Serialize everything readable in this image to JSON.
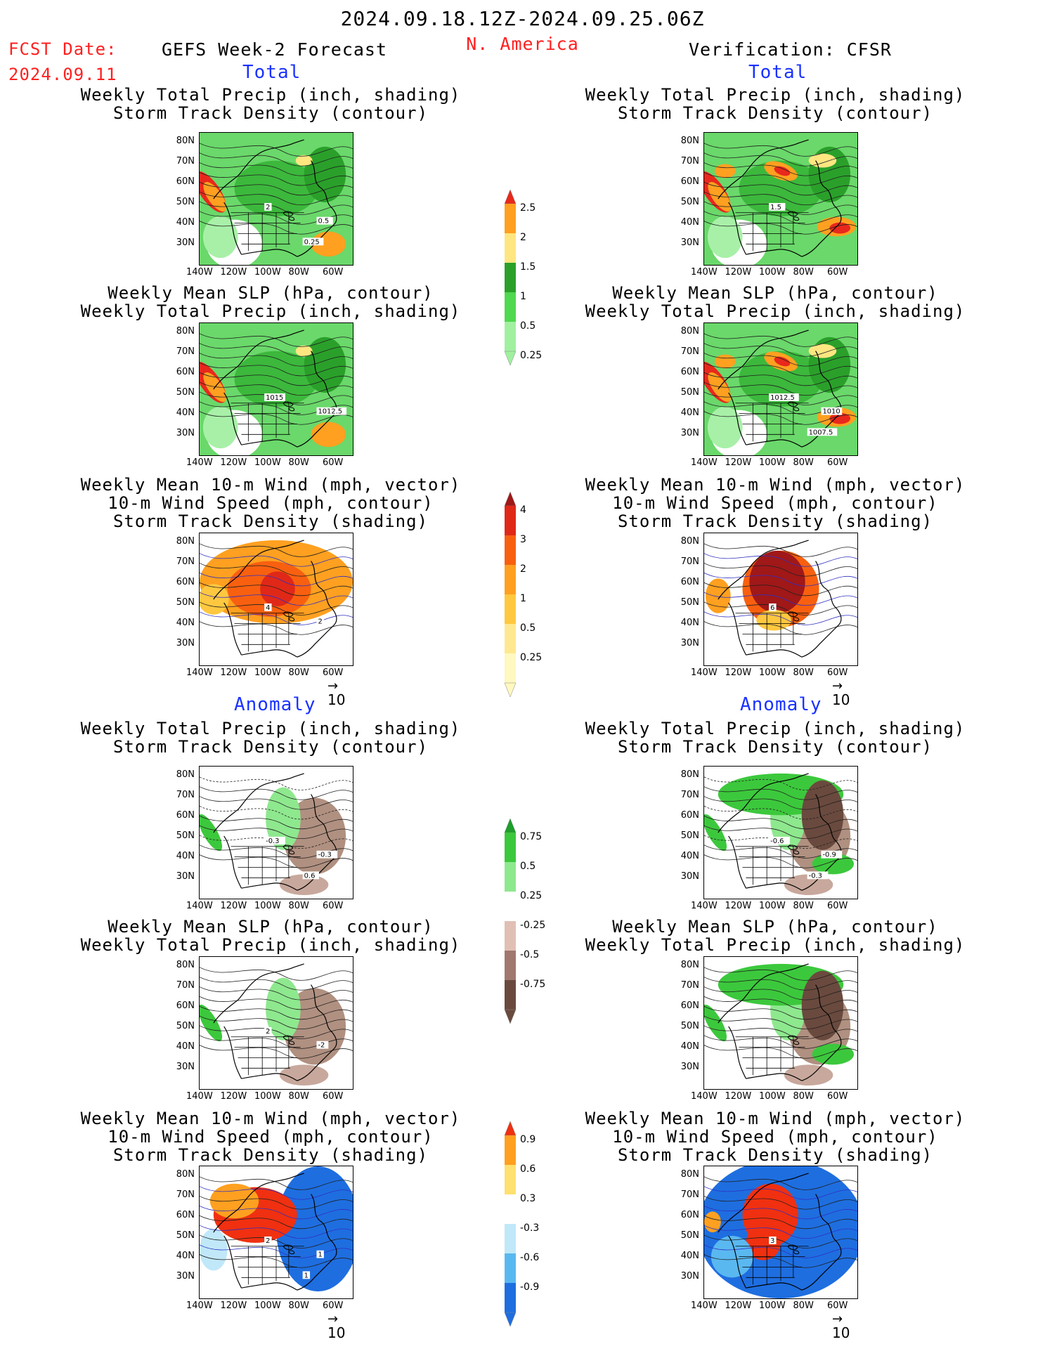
{
  "header": {
    "date_range": "2024.09.18.12Z-2024.09.25.06Z",
    "fcst_label": "FCST Date:",
    "fcst_date": "2024.09.11",
    "forecast_title": "GEFS Week-2 Forecast",
    "region": "N. America",
    "verification": "Verification: CFSR"
  },
  "section_labels": {
    "total": "Total",
    "anomaly": "Anomaly"
  },
  "axes": {
    "lat_labels": [
      "80N",
      "70N",
      "60N",
      "50N",
      "40N",
      "30N"
    ],
    "lon_labels": [
      "140W",
      "120W",
      "100W",
      "80W",
      "60W"
    ],
    "vector_ref": "10"
  },
  "panel_titles": {
    "precip_storm": [
      "Weekly Total Precip (inch, shading)",
      "Storm Track Density (contour)"
    ],
    "slp_precip": [
      "Weekly Mean SLP (hPa, contour)",
      "Weekly Total Precip (inch, shading)"
    ],
    "wind_storm": [
      "Weekly Mean 10-m Wind (mph, vector)",
      "10-m Wind Speed (mph, contour)",
      "Storm Track Density (shading)"
    ]
  },
  "contour_labels": {
    "fcst_precip": [
      "2",
      "0.5",
      "0.25"
    ],
    "cfsr_precip": [
      "1.5"
    ],
    "fcst_slp": [
      "1015",
      "1012.5"
    ],
    "cfsr_slp": [
      "1012.5",
      "1010",
      "1007.5"
    ],
    "fcst_wind": [
      "4",
      "2"
    ],
    "cfsr_wind": [
      "6"
    ],
    "fcst_anom_precip": [
      "-0.3",
      "-0.3",
      "0.6"
    ],
    "cfsr_anom_precip": [
      "-0.6",
      "-0.9",
      "-0.3"
    ],
    "fcst_anom_slp": [
      "2",
      "-2"
    ],
    "fcst_anom_wind": [
      "2",
      "1",
      "1"
    ],
    "cfsr_anom_wind": [
      "3"
    ]
  },
  "colorbars": {
    "precip_total": {
      "labels": [
        "2.5",
        "2",
        "1.5",
        "1",
        "0.5",
        "0.25"
      ],
      "colors": [
        "#e8281c",
        "#ffa020",
        "#ffe680",
        "#2aa02a",
        "#50d850",
        "#a0f0a0"
      ]
    },
    "storm_total": {
      "labels": [
        "4",
        "3",
        "2",
        "1",
        "0.5",
        "0.25"
      ],
      "colors": [
        "#a01818",
        "#e02818",
        "#f86010",
        "#ffa020",
        "#ffc840",
        "#ffe890",
        "#fff8c0"
      ]
    },
    "precip_anom": {
      "labels": [
        "0.75",
        "0.5",
        "0.25",
        "-0.25",
        "-0.5",
        "-0.75"
      ],
      "colors": [
        "#1e9e2a",
        "#3cc83c",
        "#8ee88e",
        "#ffffff",
        "#e0c0b4",
        "#a0786e",
        "#6a4a3e"
      ]
    },
    "storm_anom": {
      "labels": [
        "0.9",
        "0.6",
        "0.3",
        "-0.3",
        "-0.6",
        "-0.9"
      ],
      "colors": [
        "#f03010",
        "#ffa020",
        "#ffe070",
        "#ffffff",
        "#c0e8f8",
        "#5ab8f0",
        "#1e6ee0"
      ]
    }
  }
}
